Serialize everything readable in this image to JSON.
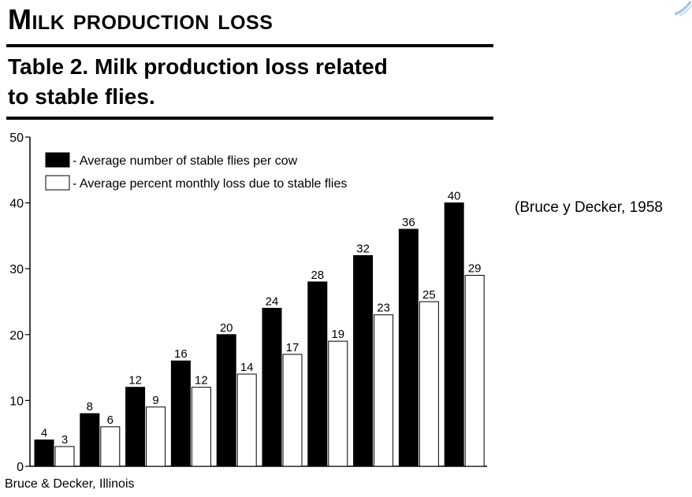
{
  "slide": {
    "title": "Milk production loss",
    "caption": "Table 2. Milk production loss related\nto stable flies.",
    "citation": "(Bruce y Decker, 1958"
  },
  "chart_data": {
    "type": "bar",
    "title": "Table 2. Milk production loss related to stable flies.",
    "categories": [
      "",
      "",
      "",
      "",
      "",
      "",
      "",
      "",
      "",
      ""
    ],
    "series": [
      {
        "name": "- Average number of stable flies per cow",
        "values": [
          4,
          8,
          12,
          16,
          20,
          24,
          28,
          32,
          36,
          40
        ],
        "color": "#000000"
      },
      {
        "name": "- Average percent monthly loss due to stable flies",
        "values": [
          3,
          6,
          9,
          12,
          14,
          17,
          19,
          23,
          25,
          29
        ],
        "color": "#ffffff"
      }
    ],
    "ylim": [
      0,
      50
    ],
    "yticks": [
      "0",
      "10",
      "20",
      "30",
      "40",
      "50"
    ],
    "xlabel": "",
    "ylabel": "",
    "grid": false,
    "legend_position": "top-left",
    "source": "Bruce & Decker, Illinois"
  }
}
